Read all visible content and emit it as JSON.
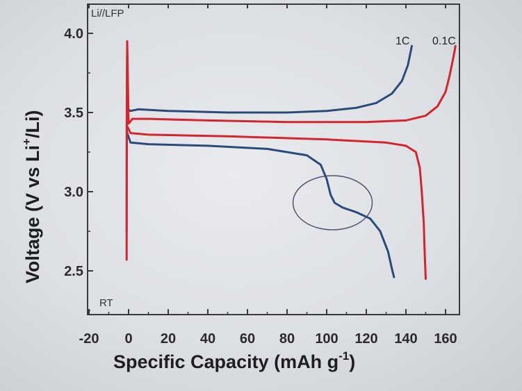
{
  "chart_data": {
    "type": "line",
    "annotations": {
      "top_left": "Li//LFP",
      "bottom_left": "RT"
    },
    "xlabel": "Specific Capacity (mAh g",
    "xlabel_sup": "-1",
    "xlabel_tail": ")",
    "ylabel": "Voltage (V vs Li",
    "ylabel_sup": "+",
    "ylabel_tail": "/Li)",
    "xlim": [
      -20,
      170
    ],
    "ylim": [
      2.25,
      4.1
    ],
    "xticks": [
      -20,
      0,
      20,
      40,
      60,
      80,
      100,
      120,
      140,
      160
    ],
    "xtick_labels": [
      "-20",
      "0",
      "20",
      "40",
      "60",
      "80",
      "100",
      "120",
      "140",
      "160"
    ],
    "yticks": [
      2.5,
      3.0,
      3.5,
      4.0
    ],
    "ytick_labels": [
      "2.5",
      "3.0",
      "3.5",
      "4.0"
    ],
    "colors": {
      "1C": "#2a4a7a",
      "0.1C": "#d4252c"
    },
    "series": [
      {
        "name": "1C",
        "label": "1C",
        "color": "#2a4a7a",
        "charge": [
          [
            -1,
            2.75
          ],
          [
            -0.9,
            3.4
          ],
          [
            -0.7,
            3.9
          ],
          [
            -0.3,
            3.52
          ],
          [
            1,
            3.51
          ],
          [
            5,
            3.52
          ],
          [
            20,
            3.51
          ],
          [
            50,
            3.5
          ],
          [
            80,
            3.5
          ],
          [
            100,
            3.51
          ],
          [
            115,
            3.53
          ],
          [
            125,
            3.56
          ],
          [
            133,
            3.62
          ],
          [
            138,
            3.7
          ],
          [
            141,
            3.8
          ],
          [
            143,
            3.92
          ]
        ],
        "discharge": [
          [
            -1,
            3.38
          ],
          [
            1,
            3.31
          ],
          [
            10,
            3.3
          ],
          [
            40,
            3.29
          ],
          [
            70,
            3.27
          ],
          [
            90,
            3.23
          ],
          [
            97,
            3.17
          ],
          [
            100,
            3.08
          ],
          [
            102,
            2.98
          ],
          [
            104,
            2.93
          ],
          [
            108,
            2.9
          ],
          [
            115,
            2.87
          ],
          [
            122,
            2.83
          ],
          [
            127,
            2.75
          ],
          [
            131,
            2.62
          ],
          [
            133,
            2.51
          ],
          [
            134,
            2.46
          ]
        ]
      },
      {
        "name": "0.1C",
        "label": "0.1C",
        "color": "#d4252c",
        "charge": [
          [
            -1,
            2.57
          ],
          [
            -0.9,
            3.5
          ],
          [
            -0.7,
            3.95
          ],
          [
            0,
            3.43
          ],
          [
            2,
            3.46
          ],
          [
            10,
            3.46
          ],
          [
            40,
            3.45
          ],
          [
            80,
            3.44
          ],
          [
            120,
            3.44
          ],
          [
            140,
            3.45
          ],
          [
            150,
            3.48
          ],
          [
            156,
            3.54
          ],
          [
            160,
            3.63
          ],
          [
            162,
            3.73
          ],
          [
            164,
            3.85
          ],
          [
            165,
            3.92
          ]
        ],
        "discharge": [
          [
            -1,
            3.42
          ],
          [
            1,
            3.37
          ],
          [
            10,
            3.36
          ],
          [
            50,
            3.35
          ],
          [
            100,
            3.33
          ],
          [
            130,
            3.31
          ],
          [
            140,
            3.29
          ],
          [
            145,
            3.25
          ],
          [
            147,
            3.15
          ],
          [
            148,
            3.0
          ],
          [
            149,
            2.8
          ],
          [
            149.5,
            2.6
          ],
          [
            150,
            2.45
          ]
        ]
      }
    ],
    "highlight_ellipse": {
      "cx": 103,
      "cy": 2.93
    }
  }
}
